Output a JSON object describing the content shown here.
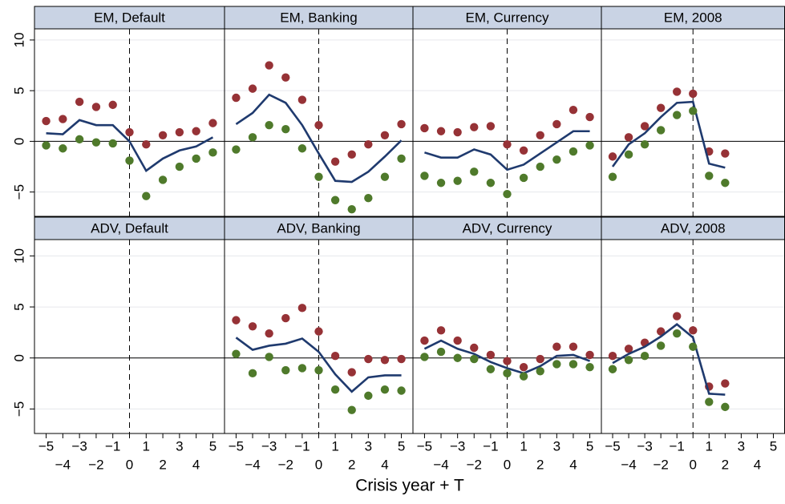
{
  "xlabel": "Crisis year + T",
  "chart_data": [
    {
      "type": "scatter-line",
      "title": "EM, Default",
      "x": [
        -5,
        -4,
        -3,
        -2,
        -1,
        0,
        1,
        2,
        3,
        4,
        5
      ],
      "xlim": [
        -5.7,
        5.7
      ],
      "ylim": [
        -7.4,
        11.1
      ],
      "yticks": [
        {
          "value": -5,
          "label": "−5"
        },
        0,
        5,
        10
      ],
      "grid": true,
      "reference_x": 0,
      "reference_y": 0,
      "series": [
        {
          "color": "#963236",
          "style": "dots",
          "values": [
            2.0,
            2.2,
            3.9,
            3.4,
            3.6,
            0.9,
            -0.3,
            0.6,
            0.9,
            1.0,
            1.8
          ]
        },
        {
          "color": "#1f3a6e",
          "style": "line",
          "values": [
            0.8,
            0.7,
            2.1,
            1.6,
            1.6,
            0.0,
            -2.9,
            -1.7,
            -0.9,
            -0.5,
            0.4
          ]
        },
        {
          "color": "#4f7a2b",
          "style": "dots",
          "values": [
            -0.4,
            -0.7,
            0.2,
            -0.1,
            -0.2,
            -1.9,
            -5.4,
            -3.8,
            -2.5,
            -1.7,
            -1.1
          ]
        }
      ]
    },
    {
      "type": "scatter-line",
      "title": "EM, Banking",
      "x": [
        -5,
        -4,
        -3,
        -2,
        -1,
        0,
        1,
        2,
        3,
        4,
        5
      ],
      "xlim": [
        -5.7,
        5.7
      ],
      "ylim": [
        -7.4,
        11.1
      ],
      "yticks": [
        {
          "value": -5,
          "label": "−5"
        },
        0,
        5,
        10
      ],
      "grid": true,
      "reference_x": 0,
      "reference_y": 0,
      "series": [
        {
          "color": "#963236",
          "style": "dots",
          "values": [
            4.3,
            5.2,
            7.5,
            6.3,
            4.1,
            1.6,
            -2.0,
            -1.3,
            -0.3,
            0.6,
            1.7
          ]
        },
        {
          "color": "#1f3a6e",
          "style": "line",
          "values": [
            1.7,
            2.8,
            4.6,
            3.8,
            1.6,
            -1.2,
            -3.9,
            -4.0,
            -3.0,
            -1.5,
            0.1
          ]
        },
        {
          "color": "#4f7a2b",
          "style": "dots",
          "values": [
            -0.8,
            0.4,
            1.6,
            1.2,
            -0.7,
            -3.5,
            -5.8,
            -6.7,
            -5.6,
            -3.5,
            -1.7
          ]
        }
      ]
    },
    {
      "type": "scatter-line",
      "title": "EM, Currency",
      "x": [
        -5,
        -4,
        -3,
        -2,
        -1,
        0,
        1,
        2,
        3,
        4,
        5
      ],
      "xlim": [
        -5.7,
        5.7
      ],
      "ylim": [
        -7.4,
        11.1
      ],
      "yticks": [
        {
          "value": -5,
          "label": "−5"
        },
        0,
        5,
        10
      ],
      "grid": true,
      "reference_x": 0,
      "reference_y": 0,
      "series": [
        {
          "color": "#963236",
          "style": "dots",
          "values": [
            1.3,
            1.0,
            0.9,
            1.4,
            1.5,
            -0.3,
            -0.9,
            0.6,
            1.7,
            3.1,
            2.4
          ]
        },
        {
          "color": "#1f3a6e",
          "style": "line",
          "values": [
            -1.1,
            -1.6,
            -1.6,
            -0.8,
            -1.3,
            -2.8,
            -2.3,
            -1.2,
            -0.1,
            1.0,
            1.0
          ]
        },
        {
          "color": "#4f7a2b",
          "style": "dots",
          "values": [
            -3.4,
            -4.1,
            -3.9,
            -3.0,
            -4.1,
            -5.2,
            -3.6,
            -2.5,
            -1.8,
            -1.0,
            -0.4
          ]
        }
      ]
    },
    {
      "type": "scatter-line",
      "title": "EM, 2008",
      "x": [
        -5,
        -4,
        -3,
        -2,
        -1,
        0,
        1,
        2,
        3,
        4,
        5
      ],
      "xlim": [
        -5.7,
        5.7
      ],
      "ylim": [
        -7.4,
        11.1
      ],
      "yticks": [
        {
          "value": -5,
          "label": "−5"
        },
        0,
        5,
        10
      ],
      "grid": true,
      "reference_x": 0,
      "reference_y": 0,
      "series": [
        {
          "color": "#963236",
          "style": "dots",
          "values": [
            -1.5,
            0.4,
            1.5,
            3.3,
            4.9,
            4.7,
            -1.0,
            -1.2,
            null,
            null,
            null
          ]
        },
        {
          "color": "#1f3a6e",
          "style": "line",
          "values": [
            -2.5,
            -0.3,
            0.8,
            2.4,
            3.8,
            3.9,
            -2.2,
            -2.6,
            null,
            null,
            null
          ]
        },
        {
          "color": "#4f7a2b",
          "style": "dots",
          "values": [
            -3.5,
            -1.3,
            -0.3,
            1.1,
            2.6,
            3.0,
            -3.4,
            -4.1,
            null,
            null,
            null
          ]
        }
      ]
    },
    {
      "type": "scatter-line",
      "title": "ADV, Default",
      "x": [
        -5,
        -4,
        -3,
        -2,
        -1,
        0,
        1,
        2,
        3,
        4,
        5
      ],
      "xlim": [
        -5.7,
        5.7
      ],
      "ylim": [
        -7.4,
        11.6
      ],
      "xticks": [
        {
          "value": -5,
          "label": "−5"
        },
        {
          "value": -4,
          "label": "−4"
        },
        {
          "value": -3,
          "label": "−3"
        },
        {
          "value": -2,
          "label": "−2"
        },
        {
          "value": -1,
          "label": "−1"
        },
        0,
        1,
        2,
        3,
        4,
        5
      ],
      "yticks": [
        {
          "value": -5,
          "label": "−5"
        },
        0,
        5,
        10
      ],
      "grid": true,
      "reference_x": 0,
      "reference_y": 0,
      "series": [
        {
          "color": "#963236",
          "style": "dots",
          "values": [
            null,
            null,
            null,
            null,
            null,
            null,
            null,
            null,
            null,
            null,
            null
          ]
        },
        {
          "color": "#1f3a6e",
          "style": "line",
          "values": [
            null,
            null,
            null,
            null,
            null,
            null,
            null,
            null,
            null,
            null,
            null
          ]
        },
        {
          "color": "#4f7a2b",
          "style": "dots",
          "values": [
            null,
            null,
            null,
            null,
            null,
            null,
            null,
            null,
            null,
            null,
            null
          ]
        }
      ]
    },
    {
      "type": "scatter-line",
      "title": "ADV, Banking",
      "x": [
        -5,
        -4,
        -3,
        -2,
        -1,
        0,
        1,
        2,
        3,
        4,
        5
      ],
      "xlim": [
        -5.7,
        5.7
      ],
      "ylim": [
        -7.4,
        11.6
      ],
      "xticks": [
        {
          "value": -5,
          "label": "−5"
        },
        {
          "value": -4,
          "label": "−4"
        },
        {
          "value": -3,
          "label": "−3"
        },
        {
          "value": -2,
          "label": "−2"
        },
        {
          "value": -1,
          "label": "−1"
        },
        0,
        1,
        2,
        3,
        4,
        5
      ],
      "yticks": [
        {
          "value": -5,
          "label": "−5"
        },
        0,
        5,
        10
      ],
      "grid": true,
      "reference_x": 0,
      "reference_y": 0,
      "series": [
        {
          "color": "#963236",
          "style": "dots",
          "values": [
            3.7,
            3.1,
            2.4,
            3.9,
            4.9,
            2.6,
            0.2,
            -1.4,
            -0.1,
            -0.2,
            -0.1
          ]
        },
        {
          "color": "#1f3a6e",
          "style": "line",
          "values": [
            2.0,
            0.8,
            1.2,
            1.4,
            1.9,
            0.6,
            -1.6,
            -3.3,
            -1.9,
            -1.7,
            -1.7
          ]
        },
        {
          "color": "#4f7a2b",
          "style": "dots",
          "values": [
            0.4,
            -1.5,
            0.1,
            -1.2,
            -1.0,
            -1.2,
            -3.1,
            -5.1,
            -3.7,
            -3.1,
            -3.2
          ]
        }
      ]
    },
    {
      "type": "scatter-line",
      "title": "ADV, Currency",
      "x": [
        -5,
        -4,
        -3,
        -2,
        -1,
        0,
        1,
        2,
        3,
        4,
        5
      ],
      "xlim": [
        -5.7,
        5.7
      ],
      "ylim": [
        -7.4,
        11.6
      ],
      "xticks": [
        {
          "value": -5,
          "label": "−5"
        },
        {
          "value": -4,
          "label": "−4"
        },
        {
          "value": -3,
          "label": "−3"
        },
        {
          "value": -2,
          "label": "−2"
        },
        {
          "value": -1,
          "label": "−1"
        },
        0,
        1,
        2,
        3,
        4,
        5
      ],
      "yticks": [
        {
          "value": -5,
          "label": "−5"
        },
        0,
        5,
        10
      ],
      "grid": true,
      "reference_x": 0,
      "reference_y": 0,
      "series": [
        {
          "color": "#963236",
          "style": "dots",
          "values": [
            1.7,
            2.7,
            1.7,
            1.0,
            0.3,
            -0.3,
            -0.9,
            -0.1,
            1.1,
            1.1,
            0.3
          ]
        },
        {
          "color": "#1f3a6e",
          "style": "line",
          "values": [
            0.9,
            1.7,
            0.9,
            0.4,
            -0.4,
            -1.0,
            -1.5,
            -0.8,
            0.2,
            0.3,
            -0.3
          ]
        },
        {
          "color": "#4f7a2b",
          "style": "dots",
          "values": [
            0.1,
            0.6,
            0.0,
            -0.1,
            -1.1,
            -1.5,
            -1.8,
            -1.3,
            -0.6,
            -0.6,
            -0.9
          ]
        }
      ]
    },
    {
      "type": "scatter-line",
      "title": "ADV, 2008",
      "x": [
        -5,
        -4,
        -3,
        -2,
        -1,
        0,
        1,
        2,
        3,
        4,
        5
      ],
      "xlim": [
        -5.7,
        5.7
      ],
      "ylim": [
        -7.4,
        11.6
      ],
      "xticks": [
        {
          "value": -5,
          "label": "−5"
        },
        {
          "value": -4,
          "label": "−4"
        },
        {
          "value": -3,
          "label": "−3"
        },
        {
          "value": -2,
          "label": "−2"
        },
        {
          "value": -1,
          "label": "−1"
        },
        0,
        1,
        2,
        3,
        4,
        5
      ],
      "yticks": [
        {
          "value": -5,
          "label": "−5"
        },
        0,
        5,
        10
      ],
      "grid": true,
      "reference_x": 0,
      "reference_y": 0,
      "series": [
        {
          "color": "#963236",
          "style": "dots",
          "values": [
            0.2,
            0.9,
            1.5,
            2.6,
            4.1,
            2.7,
            -2.8,
            -2.5,
            null,
            null,
            null
          ]
        },
        {
          "color": "#1f3a6e",
          "style": "line",
          "values": [
            -0.5,
            0.4,
            1.1,
            2.1,
            3.3,
            2.0,
            -3.5,
            -3.6,
            null,
            null,
            null
          ]
        },
        {
          "color": "#4f7a2b",
          "style": "dots",
          "values": [
            -1.1,
            -0.2,
            0.2,
            1.2,
            2.4,
            1.1,
            -4.3,
            -4.8,
            null,
            null,
            null
          ]
        }
      ]
    }
  ]
}
